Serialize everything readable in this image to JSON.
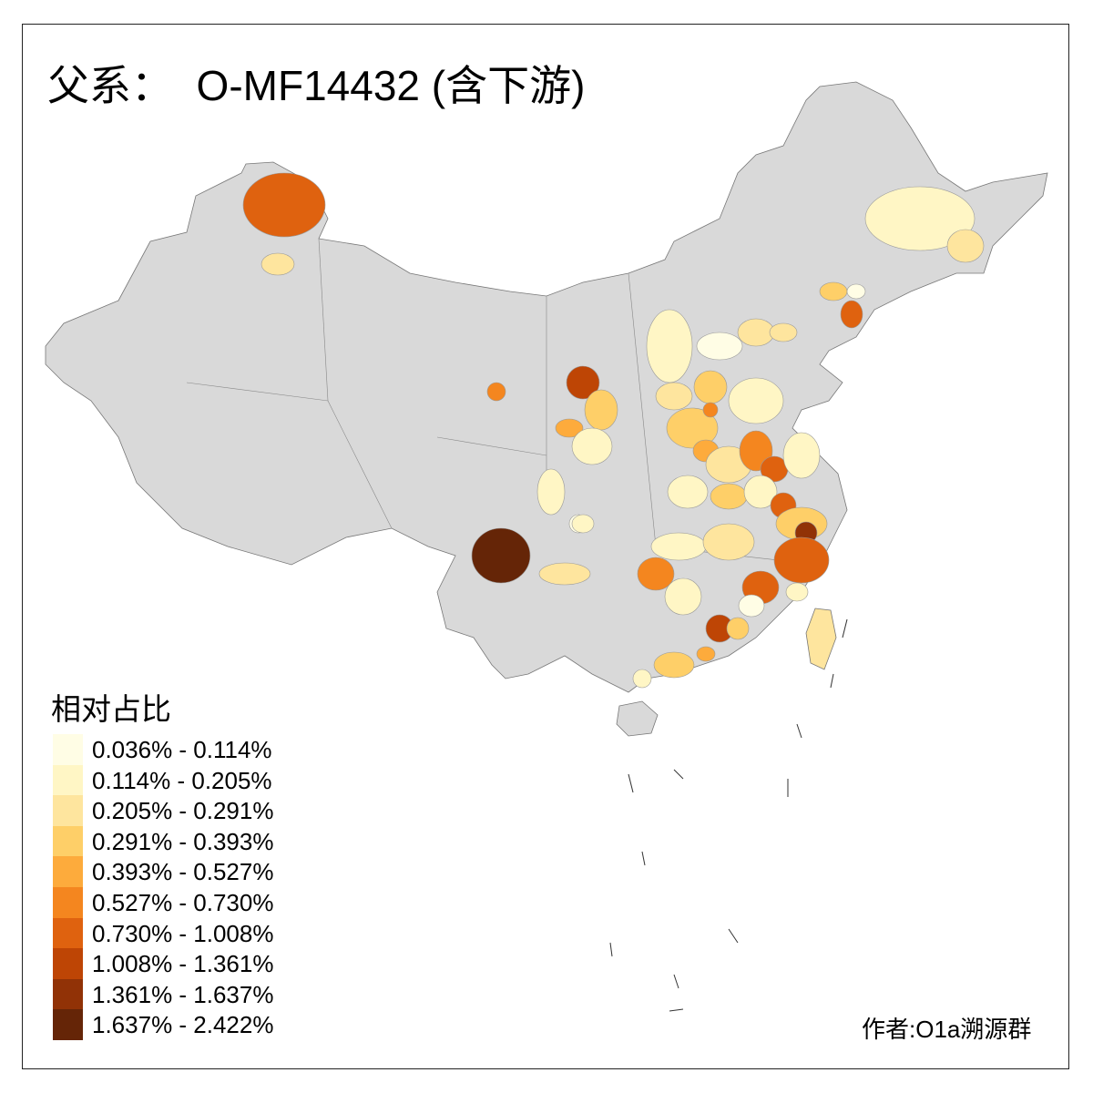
{
  "title": "父系：  O-MF14432 (含下游)",
  "legend": {
    "title": "相对占比",
    "items": [
      {
        "label": "0.036% - 0.114%",
        "color": "#FFFDE5"
      },
      {
        "label": "0.114% - 0.205%",
        "color": "#FFF6C5"
      },
      {
        "label": "0.205% - 0.291%",
        "color": "#FEE59E"
      },
      {
        "label": "0.291% - 0.393%",
        "color": "#FECF68"
      },
      {
        "label": "0.393% - 0.527%",
        "color": "#FDAB3C"
      },
      {
        "label": "0.527% - 0.730%",
        "color": "#F4861F"
      },
      {
        "label": "0.730% - 1.008%",
        "color": "#DF620F"
      },
      {
        "label": "1.008% - 1.361%",
        "color": "#BE4505"
      },
      {
        "label": "1.361% - 1.637%",
        "color": "#913206"
      },
      {
        "label": "1.637% - 2.422%",
        "color": "#652507"
      }
    ]
  },
  "no_data_color": "#D9D9D9",
  "author": "作者:O1a溯源群"
}
